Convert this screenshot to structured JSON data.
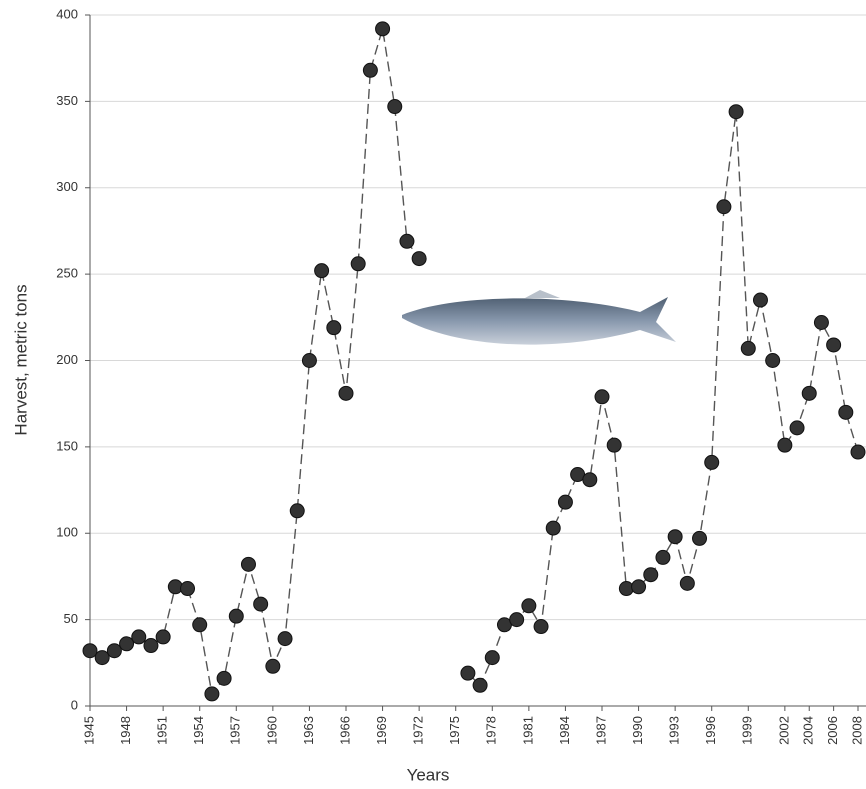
{
  "chart_data": {
    "type": "line",
    "y_label": "Harvest, metric tons",
    "x_label": "Years",
    "x": [
      1945,
      1946,
      1947,
      1948,
      1949,
      1950,
      1951,
      1952,
      1953,
      1954,
      1955,
      1956,
      1957,
      1958,
      1959,
      1960,
      1961,
      1962,
      1963,
      1964,
      1965,
      1966,
      1967,
      1968,
      1969,
      1970,
      1971,
      1972,
      1973,
      1974,
      1975,
      1976,
      1977,
      1978,
      1979,
      1980,
      1981,
      1982,
      1983,
      1984,
      1985,
      1986,
      1987,
      1988,
      1989,
      1990,
      1991,
      1992,
      1993,
      1994,
      1995,
      1996,
      1997,
      1998,
      1999,
      2000,
      2001,
      2002,
      2003,
      2004,
      2005,
      2006,
      2007,
      2008
    ],
    "values": [
      32,
      28,
      32,
      36,
      40,
      35,
      40,
      69,
      68,
      47,
      7,
      16,
      52,
      82,
      59,
      23,
      39,
      113,
      200,
      252,
      219,
      181,
      256,
      368,
      392,
      347,
      269,
      259,
      null,
      null,
      null,
      19,
      12,
      28,
      47,
      50,
      58,
      46,
      103,
      118,
      134,
      131,
      179,
      151,
      68,
      69,
      76,
      86,
      98,
      71,
      97,
      141,
      289,
      344,
      207,
      235,
      200,
      151,
      161,
      181,
      222,
      209,
      170,
      147
    ],
    "color": "#333333",
    "line_color": "#555555",
    "xlim": [
      1945,
      2008
    ],
    "xticks": [
      1945,
      1948,
      1951,
      1954,
      1957,
      1960,
      1963,
      1966,
      1969,
      1972,
      1975,
      1978,
      1981,
      1984,
      1987,
      1990,
      1993,
      1996,
      1999,
      2002,
      2004,
      2006,
      2008
    ],
    "ylim": [
      0,
      400
    ],
    "yticks": [
      0,
      50,
      100,
      150,
      200,
      250,
      300,
      350,
      400
    ],
    "grid": true
  }
}
